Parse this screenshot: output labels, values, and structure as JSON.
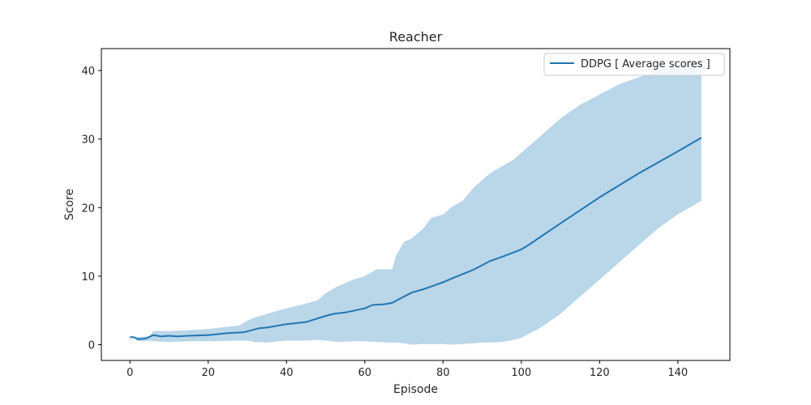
{
  "chart_data": {
    "type": "line",
    "title": "Reacher",
    "xlabel": "Episode",
    "ylabel": "Score",
    "xlim": [
      -7.3,
      153.3
    ],
    "ylim": [
      -2.3,
      43.2
    ],
    "xticks": [
      0,
      20,
      40,
      60,
      80,
      100,
      120,
      140
    ],
    "yticks": [
      0,
      10,
      20,
      30,
      40
    ],
    "grid": false,
    "legend_position": "top-right",
    "colors": {
      "line": "#1f77b4",
      "band": "#bad6e9"
    },
    "series": [
      {
        "name": "DDPG [ Average scores ]",
        "x": [
          0,
          1,
          2,
          4,
          6,
          8,
          10,
          12,
          15,
          20,
          25,
          29,
          31,
          33,
          35,
          40,
          45,
          50,
          52,
          55,
          60,
          62,
          65,
          67,
          70,
          72,
          75,
          78,
          80,
          82,
          85,
          88,
          92,
          95,
          100,
          102,
          110,
          120,
          130,
          140,
          146
        ],
        "y": [
          1.1,
          1.1,
          0.8,
          0.9,
          1.4,
          1.2,
          1.3,
          1.2,
          1.3,
          1.4,
          1.7,
          1.8,
          2.1,
          2.4,
          2.5,
          3.0,
          3.3,
          4.2,
          4.5,
          4.7,
          5.3,
          5.8,
          5.9,
          6.1,
          7.0,
          7.6,
          8.1,
          8.7,
          9.1,
          9.6,
          10.3,
          11.0,
          12.2,
          12.8,
          13.9,
          14.6,
          17.7,
          21.5,
          25.0,
          28.2,
          30.2
        ]
      }
    ],
    "band": {
      "x": [
        0,
        1,
        2,
        4,
        5,
        6,
        10,
        15,
        20,
        28,
        30,
        32,
        35,
        38,
        40,
        45,
        48,
        50,
        53,
        57,
        60,
        63,
        67,
        68,
        70,
        72,
        75,
        77,
        80,
        82,
        85,
        88,
        90,
        92,
        95,
        98,
        100,
        105,
        110,
        115,
        120,
        125,
        130,
        135,
        140,
        143,
        146
      ],
      "upper": [
        1.1,
        1.1,
        1.1,
        1.2,
        1.2,
        2.0,
        2.0,
        2.1,
        2.3,
        2.8,
        3.5,
        4.0,
        4.5,
        5.0,
        5.3,
        6.0,
        6.5,
        7.5,
        8.5,
        9.5,
        10.0,
        11.0,
        11.0,
        13.0,
        15.0,
        15.5,
        17.0,
        18.5,
        19.0,
        20.0,
        21.0,
        23.0,
        24.0,
        25.0,
        26.0,
        27.0,
        28.0,
        30.5,
        33.0,
        35.0,
        36.5,
        38.0,
        39.0,
        40.0,
        41.0,
        41.5,
        41.5
      ],
      "lower": [
        1.1,
        1.1,
        0.5,
        0.5,
        0.6,
        0.5,
        0.4,
        0.5,
        0.5,
        0.6,
        0.6,
        0.4,
        0.3,
        0.5,
        0.6,
        0.6,
        0.7,
        0.6,
        0.4,
        0.5,
        0.5,
        0.4,
        0.3,
        0.3,
        0.2,
        0.0,
        0.1,
        0.1,
        0.1,
        0.0,
        0.1,
        0.2,
        0.3,
        0.3,
        0.4,
        0.7,
        1.0,
        2.5,
        4.5,
        7.0,
        9.5,
        12.0,
        14.5,
        17.0,
        19.0,
        20.0,
        21.0
      ]
    }
  }
}
